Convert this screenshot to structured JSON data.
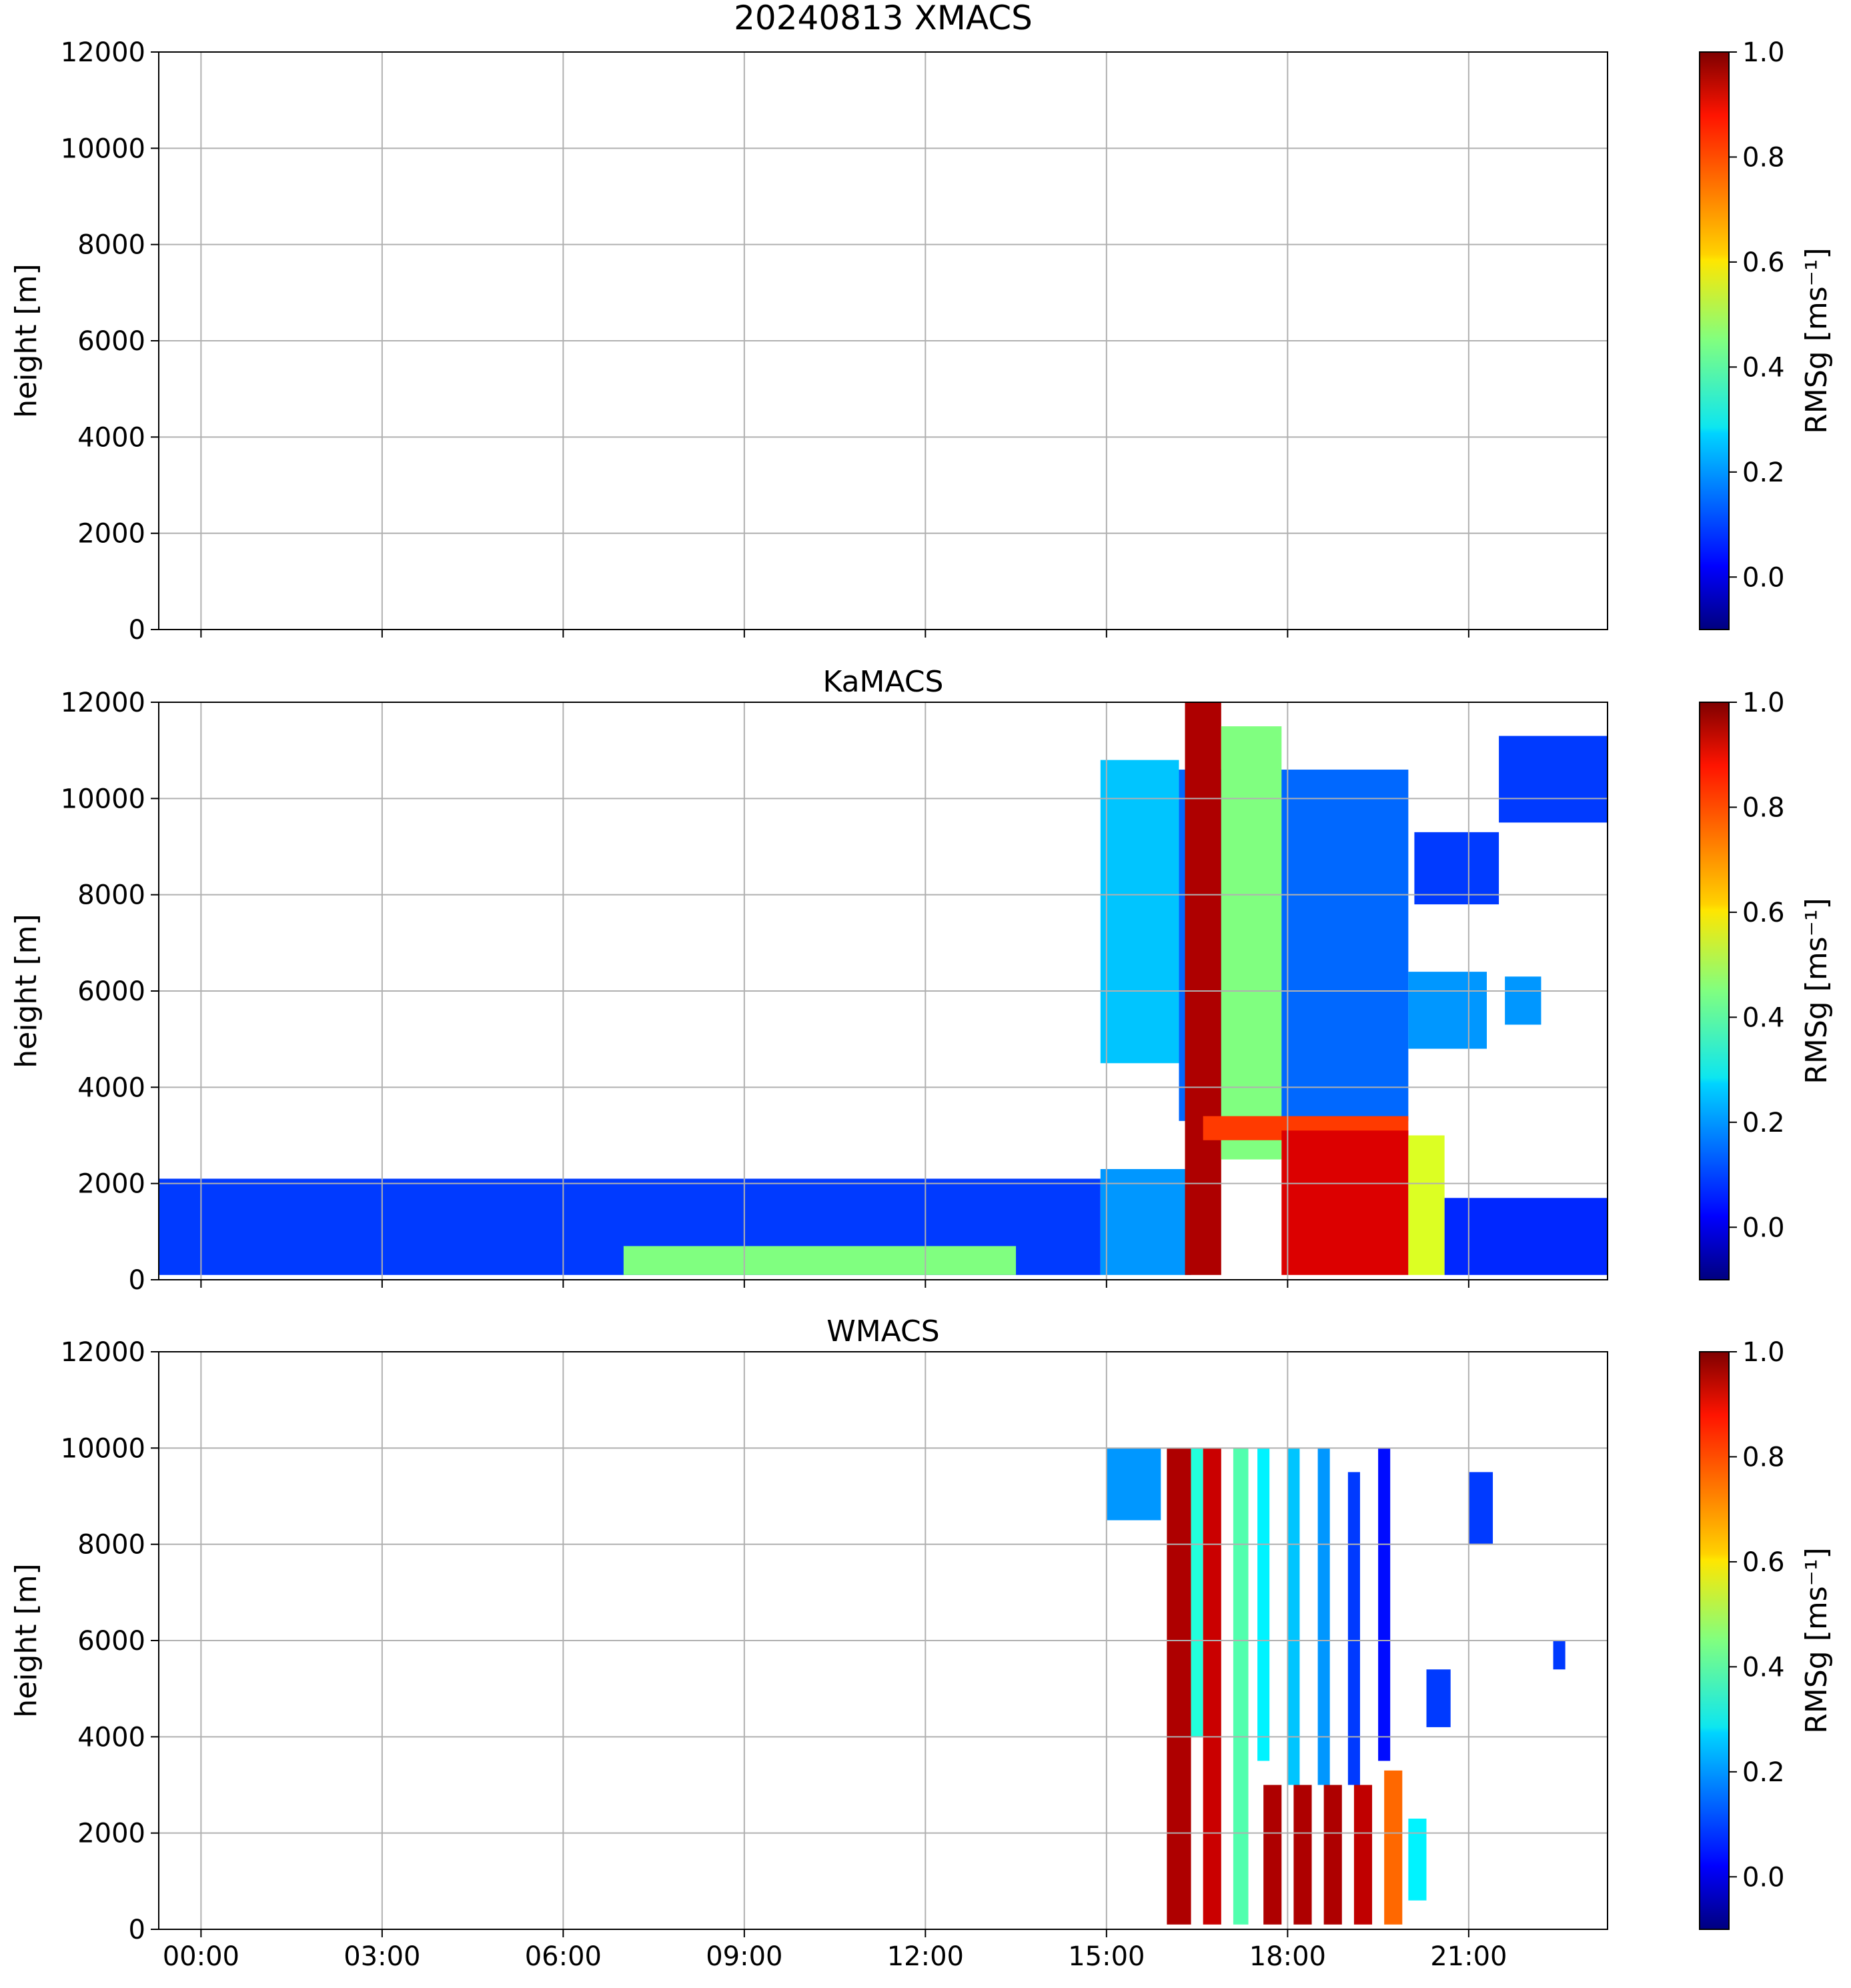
{
  "chart_data": {
    "type": "heatmap",
    "figure_title": "20240813 XMACS",
    "x_ticks": [
      "00:00",
      "03:00",
      "06:00",
      "09:00",
      "12:00",
      "15:00",
      "18:00",
      "21:00"
    ],
    "y_ticks": [
      "0",
      "2000",
      "4000",
      "6000",
      "8000",
      "10000",
      "12000"
    ],
    "ylabel": "height [m]",
    "xlim_hours": [
      -0.7,
      23.3
    ],
    "ylim": [
      0,
      12000
    ],
    "colorbar": {
      "label": "RMSg [ms⁻¹]",
      "range": [
        -0.1,
        1.0
      ],
      "ticks": [
        "0.0",
        "0.2",
        "0.4",
        "0.6",
        "0.8",
        "1.0"
      ],
      "colormap": "jet"
    },
    "panels": [
      {
        "title": "",
        "empty": true,
        "regions": []
      },
      {
        "title": "KaMACS",
        "empty": false,
        "regions": [
          {
            "t0": -0.7,
            "t1": 14.9,
            "h0": 100,
            "h1": 2100,
            "value": 0.1
          },
          {
            "t0": 7.0,
            "t1": 13.5,
            "h0": 100,
            "h1": 700,
            "value": 0.45
          },
          {
            "t0": 14.9,
            "t1": 16.4,
            "h0": 100,
            "h1": 2300,
            "value": 0.2
          },
          {
            "t0": 14.9,
            "t1": 16.2,
            "h0": 4500,
            "h1": 10800,
            "value": 0.25
          },
          {
            "t0": 16.2,
            "t1": 20.0,
            "h0": 3300,
            "h1": 10600,
            "value": 0.15
          },
          {
            "t0": 16.3,
            "t1": 16.9,
            "h0": 100,
            "h1": 12000,
            "value": 0.95
          },
          {
            "t0": 16.9,
            "t1": 17.9,
            "h0": 2500,
            "h1": 11500,
            "value": 0.45
          },
          {
            "t0": 16.6,
            "t1": 20.0,
            "h0": 2900,
            "h1": 3400,
            "value": 0.8
          },
          {
            "t0": 17.9,
            "t1": 20.0,
            "h0": 100,
            "h1": 3100,
            "value": 0.9
          },
          {
            "t0": 20.0,
            "t1": 20.6,
            "h0": 100,
            "h1": 3000,
            "value": 0.55
          },
          {
            "t0": 20.0,
            "t1": 21.3,
            "h0": 4800,
            "h1": 6400,
            "value": 0.2
          },
          {
            "t0": 20.1,
            "t1": 21.5,
            "h0": 7800,
            "h1": 9300,
            "value": 0.1
          },
          {
            "t0": 21.6,
            "t1": 22.2,
            "h0": 5300,
            "h1": 6300,
            "value": 0.2
          },
          {
            "t0": 21.5,
            "t1": 23.3,
            "h0": 9500,
            "h1": 11300,
            "value": 0.1
          },
          {
            "t0": 20.6,
            "t1": 23.3,
            "h0": 100,
            "h1": 1700,
            "value": 0.08
          }
        ]
      },
      {
        "title": "WMACS",
        "empty": false,
        "regions": [
          {
            "t0": 15.0,
            "t1": 15.9,
            "h0": 8500,
            "h1": 10000,
            "value": 0.2
          },
          {
            "t0": 16.0,
            "t1": 16.4,
            "h0": 100,
            "h1": 10000,
            "value": 0.95
          },
          {
            "t0": 16.4,
            "t1": 16.6,
            "h0": 4000,
            "h1": 10000,
            "value": 0.35
          },
          {
            "t0": 16.6,
            "t1": 16.9,
            "h0": 100,
            "h1": 10000,
            "value": 0.92
          },
          {
            "t0": 17.1,
            "t1": 17.35,
            "h0": 100,
            "h1": 10000,
            "value": 0.4
          },
          {
            "t0": 17.5,
            "t1": 17.7,
            "h0": 3500,
            "h1": 10000,
            "value": 0.3
          },
          {
            "t0": 17.6,
            "t1": 17.9,
            "h0": 100,
            "h1": 3000,
            "value": 0.95
          },
          {
            "t0": 18.0,
            "t1": 18.2,
            "h0": 3000,
            "h1": 10000,
            "value": 0.25
          },
          {
            "t0": 18.1,
            "t1": 18.4,
            "h0": 100,
            "h1": 3000,
            "value": 0.95
          },
          {
            "t0": 18.5,
            "t1": 18.7,
            "h0": 3000,
            "h1": 10000,
            "value": 0.2
          },
          {
            "t0": 18.6,
            "t1": 18.9,
            "h0": 100,
            "h1": 3000,
            "value": 0.95
          },
          {
            "t0": 19.0,
            "t1": 19.2,
            "h0": 3000,
            "h1": 9500,
            "value": 0.1
          },
          {
            "t0": 19.1,
            "t1": 19.4,
            "h0": 100,
            "h1": 3000,
            "value": 0.93
          },
          {
            "t0": 19.5,
            "t1": 19.7,
            "h0": 3500,
            "h1": 10000,
            "value": 0.05
          },
          {
            "t0": 19.6,
            "t1": 19.9,
            "h0": 100,
            "h1": 3300,
            "value": 0.75
          },
          {
            "t0": 20.0,
            "t1": 20.3,
            "h0": 600,
            "h1": 2300,
            "value": 0.3
          },
          {
            "t0": 20.3,
            "t1": 20.7,
            "h0": 4200,
            "h1": 5400,
            "value": 0.1
          },
          {
            "t0": 21.0,
            "t1": 21.4,
            "h0": 8000,
            "h1": 9500,
            "value": 0.1
          },
          {
            "t0": 22.4,
            "t1": 22.6,
            "h0": 5400,
            "h1": 6000,
            "value": 0.1
          }
        ]
      }
    ]
  }
}
